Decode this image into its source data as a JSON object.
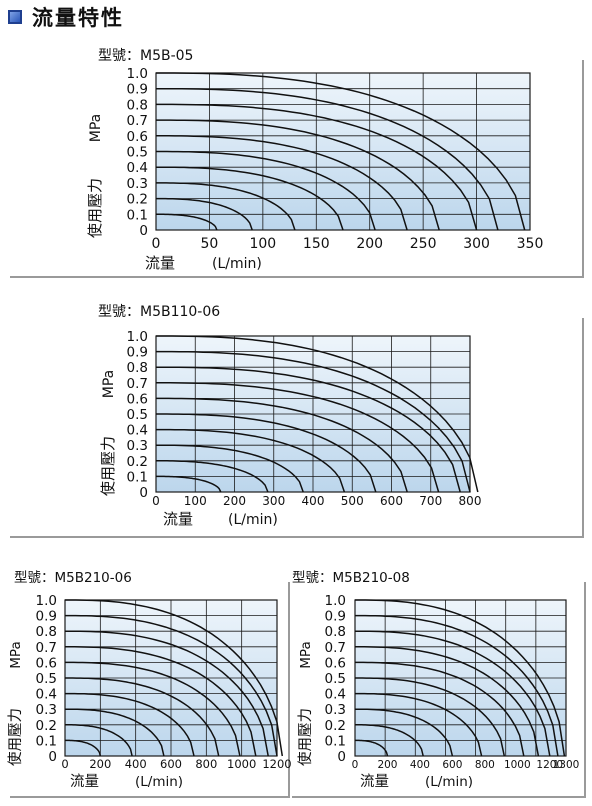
{
  "header": {
    "title": "流量特性",
    "icon": "square-bullet-icon",
    "accent_color": "#2a56b8"
  },
  "chart_data": [
    {
      "type": "line",
      "title": "型號：M5B-05",
      "xlabel": "流量",
      "xunit": "(L/min)",
      "ylabel": "使用壓力",
      "yunit": "MPa",
      "xlim": [
        0,
        350
      ],
      "ylim": [
        0,
        1.0
      ],
      "x_ticks": [
        "0",
        "50",
        "100",
        "150",
        "200",
        "250",
        "300",
        "350"
      ],
      "y_ticks": [
        "0",
        "0.1",
        "0.2",
        "0.3",
        "0.4",
        "0.5",
        "0.6",
        "0.7",
        "0.8",
        "0.9",
        "1.0"
      ],
      "series_end_flow": [
        57,
        90,
        130,
        175,
        205,
        235,
        265,
        300,
        320,
        345
      ],
      "supply_pressures": [
        0.1,
        0.2,
        0.3,
        0.4,
        0.5,
        0.6,
        0.7,
        0.8,
        0.9,
        1.0
      ],
      "grid": true
    },
    {
      "type": "line",
      "title": "型號：M5B110-06",
      "xlabel": "流量",
      "xunit": "(L/min)",
      "ylabel": "使用壓力",
      "yunit": "MPa",
      "xlim": [
        0,
        800
      ],
      "ylim": [
        0,
        1.0
      ],
      "x_ticks": [
        "0",
        "100",
        "200",
        "300",
        "400",
        "500",
        "600",
        "700",
        "800"
      ],
      "y_ticks": [
        "0",
        "0.1",
        "0.2",
        "0.3",
        "0.4",
        "0.5",
        "0.6",
        "0.7",
        "0.8",
        "0.9",
        "1.0"
      ],
      "series_end_flow": [
        165,
        285,
        375,
        480,
        560,
        640,
        720,
        775,
        800,
        820
      ],
      "supply_pressures": [
        0.1,
        0.2,
        0.3,
        0.4,
        0.5,
        0.6,
        0.7,
        0.8,
        0.9,
        1.0
      ],
      "grid": true
    },
    {
      "type": "line",
      "title": "型號：M5B210-06",
      "xlabel": "流量",
      "xunit": "(L/min)",
      "ylabel": "使用壓力",
      "yunit": "MPa",
      "xlim": [
        0,
        1200
      ],
      "ylim": [
        0,
        1.0
      ],
      "x_ticks": [
        "0",
        "200",
        "400",
        "600",
        "800",
        "1000",
        "1200"
      ],
      "y_ticks": [
        "0",
        "0.1",
        "0.2",
        "0.3",
        "0.4",
        "0.5",
        "0.6",
        "0.7",
        "0.8",
        "0.9",
        "1.0"
      ],
      "series_end_flow": [
        200,
        380,
        560,
        730,
        870,
        990,
        1080,
        1150,
        1200,
        1230
      ],
      "supply_pressures": [
        0.1,
        0.2,
        0.3,
        0.4,
        0.5,
        0.6,
        0.7,
        0.8,
        0.9,
        1.0
      ],
      "grid": true
    },
    {
      "type": "line",
      "title": "型號：M5B210-08",
      "xlabel": "流量",
      "xunit": "(L/min)",
      "ylabel": "使用壓力",
      "yunit": "MPa",
      "xlim": [
        0,
        1300
      ],
      "ylim": [
        0,
        1.0
      ],
      "x_ticks": [
        "0",
        "200",
        "400",
        "600",
        "800",
        "1000",
        "1200",
        "1300"
      ],
      "x_tick_values": [
        0,
        200,
        400,
        600,
        800,
        1000,
        1200,
        1300
      ],
      "y_ticks": [
        "0",
        "0.1",
        "0.2",
        "0.3",
        "0.4",
        "0.5",
        "0.6",
        "0.7",
        "0.8",
        "0.9",
        "1.0"
      ],
      "series_end_flow": [
        200,
        420,
        600,
        780,
        920,
        1040,
        1130,
        1200,
        1250,
        1290
      ],
      "supply_pressures": [
        0.1,
        0.2,
        0.3,
        0.4,
        0.5,
        0.6,
        0.7,
        0.8,
        0.9,
        1.0
      ],
      "grid": true
    }
  ],
  "colors": {
    "plot_bg_top": "#eef5fb",
    "plot_bg_bottom": "#bcd6ec",
    "grid": "#1a1a1a",
    "curve": "#111111"
  }
}
